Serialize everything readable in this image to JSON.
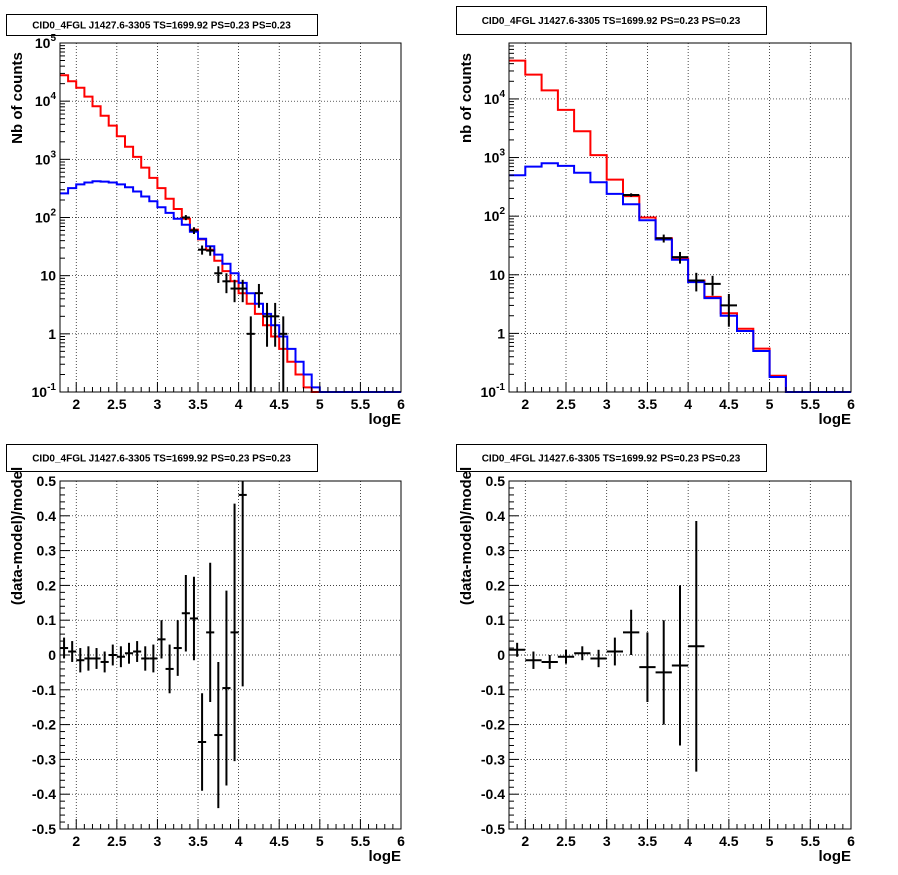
{
  "chart_data": [
    {
      "type": "histogram",
      "title": "CID0_4FGL J1427.6-3305 TS=1699.92 PS=0.23 PS=0.23",
      "xlabel": "logE",
      "ylabel": "Nb of counts",
      "xlim": [
        1.8,
        6.0
      ],
      "ylim": [
        0.1,
        100000
      ],
      "yscale": "log",
      "grid": true,
      "x_ticks": [
        "2",
        "2.5",
        "3",
        "3.5",
        "4",
        "4.5",
        "5",
        "5.5",
        "6"
      ],
      "y_ticks": [
        "10^-1",
        "1",
        "10",
        "10^2",
        "10^3",
        "10^4",
        "10^5"
      ],
      "bin_edges": [
        1.8,
        1.9,
        2.0,
        2.1,
        2.2,
        2.3,
        2.4,
        2.5,
        2.6,
        2.7,
        2.8,
        2.9,
        3.0,
        3.1,
        3.2,
        3.3,
        3.4,
        3.5,
        3.6,
        3.7,
        3.8,
        3.9,
        4.0,
        4.1,
        4.2,
        4.3,
        4.4,
        4.5,
        4.6,
        4.7,
        4.8,
        4.9,
        5.0,
        5.1,
        5.2,
        5.3,
        5.4,
        5.5,
        5.6,
        5.7,
        5.8,
        5.9,
        6.0
      ],
      "series": [
        {
          "color": "#ff0000",
          "values": [
            28000,
            22000,
            17000,
            12000,
            8200,
            5600,
            3800,
            2500,
            1650,
            1100,
            720,
            480,
            320,
            210,
            140,
            95,
            62,
            42,
            28,
            18,
            12,
            8,
            5,
            3.3,
            2.2,
            1.4,
            0.9,
            0.55,
            0.33,
            0.2,
            0.12,
            0.1,
            0.1,
            0.1,
            0.1,
            0.1,
            0.1,
            0.1,
            0.1,
            0.1,
            0.1,
            0.1
          ]
        },
        {
          "color": "#0000ff",
          "values": [
            260,
            320,
            370,
            400,
            420,
            415,
            400,
            370,
            330,
            280,
            230,
            190,
            150,
            120,
            95,
            75,
            57,
            43,
            32,
            23,
            16,
            11,
            7.5,
            5,
            3.3,
            2.2,
            1.4,
            0.9,
            0.55,
            0.33,
            0.2,
            0.12,
            0.1,
            0.1,
            0.1,
            0.1,
            0.1,
            0.1,
            0.1,
            0.1,
            0.1,
            0.1
          ]
        }
      ],
      "points": [
        {
          "x": 3.35,
          "y": 100,
          "ey": 10
        },
        {
          "x": 3.45,
          "y": 60,
          "ey": 8
        },
        {
          "x": 3.55,
          "y": 28,
          "ey": 5
        },
        {
          "x": 3.65,
          "y": 27,
          "ey": 5
        },
        {
          "x": 3.75,
          "y": 11,
          "ey": 3.5
        },
        {
          "x": 3.85,
          "y": 8,
          "ey": 3
        },
        {
          "x": 3.95,
          "y": 6,
          "ey": 2.5
        },
        {
          "x": 4.05,
          "y": 6,
          "ey": 2.5
        },
        {
          "x": 4.15,
          "y": 1,
          "ey": 1
        },
        {
          "x": 4.25,
          "y": 5,
          "ey": 2.2
        },
        {
          "x": 4.35,
          "y": 2,
          "ey": 1.4
        },
        {
          "x": 4.45,
          "y": 2,
          "ey": 1.4
        },
        {
          "x": 4.55,
          "y": 1,
          "ey": 1
        }
      ]
    },
    {
      "type": "histogram",
      "title": "CID0_4FGL J1427.6-3305 TS=1699.92 PS=0.23 PS=0.23",
      "xlabel": "logE",
      "ylabel": "nb of counts",
      "xlim": [
        1.8,
        6.0
      ],
      "ylim": [
        0.1,
        90000
      ],
      "yscale": "log",
      "grid": true,
      "x_ticks": [
        "2",
        "2.5",
        "3",
        "3.5",
        "4",
        "4.5",
        "5",
        "5.5",
        "6"
      ],
      "y_ticks": [
        "10^-1",
        "1",
        "10",
        "10^2",
        "10^3",
        "10^4"
      ],
      "bin_edges": [
        1.8,
        2.0,
        2.2,
        2.4,
        2.6,
        2.8,
        3.0,
        3.2,
        3.4,
        3.6,
        3.8,
        4.0,
        4.2,
        4.4,
        4.6,
        4.8,
        5.0,
        5.2,
        5.4,
        5.6,
        5.8,
        6.0
      ],
      "series": [
        {
          "color": "#ff0000",
          "values": [
            45000,
            26000,
            14000,
            6500,
            2800,
            1100,
            420,
            220,
            95,
            42,
            19,
            8,
            4.2,
            2.2,
            1.2,
            0.55,
            0.19,
            0.1,
            0.1,
            0.1,
            0.1
          ]
        },
        {
          "color": "#0000ff",
          "values": [
            500,
            700,
            800,
            720,
            550,
            380,
            240,
            160,
            85,
            40,
            18,
            7.5,
            4,
            2,
            1.1,
            0.5,
            0.18,
            0.1,
            0.1,
            0.1,
            0.1
          ]
        }
      ],
      "points": [
        {
          "x": 3.3,
          "y": 230,
          "ey": 15
        },
        {
          "x": 3.7,
          "y": 42,
          "ey": 6.5
        },
        {
          "x": 3.9,
          "y": 20,
          "ey": 4.5
        },
        {
          "x": 4.1,
          "y": 8,
          "ey": 2.8
        },
        {
          "x": 4.3,
          "y": 7,
          "ey": 2.6
        },
        {
          "x": 4.5,
          "y": 3,
          "ey": 1.7
        }
      ]
    },
    {
      "type": "errorbar",
      "title": "CID0_4FGL J1427.6-3305 TS=1699.92 PS=0.23 PS=0.23",
      "xlabel": "logE",
      "ylabel": "(data-model)/model",
      "xlim": [
        1.8,
        6.0
      ],
      "ylim": [
        -0.5,
        0.5
      ],
      "grid": true,
      "x_ticks": [
        "2",
        "2.5",
        "3",
        "3.5",
        "4",
        "4.5",
        "5",
        "5.5",
        "6"
      ],
      "y_ticks": [
        "-0.5",
        "-0.4",
        "-0.3",
        "-0.2",
        "-0.1",
        "0",
        "0.1",
        "0.2",
        "0.3",
        "0.4",
        "0.5"
      ],
      "points": [
        {
          "x": 1.85,
          "y": 0.02,
          "ey": 0.03
        },
        {
          "x": 1.95,
          "y": 0.01,
          "ey": 0.03
        },
        {
          "x": 2.05,
          "y": -0.015,
          "ey": 0.035
        },
        {
          "x": 2.15,
          "y": -0.01,
          "ey": 0.035
        },
        {
          "x": 2.25,
          "y": -0.01,
          "ey": 0.03
        },
        {
          "x": 2.35,
          "y": -0.02,
          "ey": 0.03
        },
        {
          "x": 2.45,
          "y": 0.0,
          "ey": 0.03
        },
        {
          "x": 2.55,
          "y": -0.005,
          "ey": 0.03
        },
        {
          "x": 2.65,
          "y": 0.005,
          "ey": 0.03
        },
        {
          "x": 2.75,
          "y": 0.01,
          "ey": 0.03
        },
        {
          "x": 2.85,
          "y": -0.01,
          "ey": 0.035
        },
        {
          "x": 2.95,
          "y": -0.01,
          "ey": 0.04
        },
        {
          "x": 3.05,
          "y": 0.045,
          "ey": 0.055
        },
        {
          "x": 3.15,
          "y": -0.04,
          "ey": 0.07
        },
        {
          "x": 3.25,
          "y": 0.02,
          "ey": 0.08
        },
        {
          "x": 3.35,
          "y": 0.12,
          "ey": 0.11
        },
        {
          "x": 3.45,
          "y": 0.105,
          "ey": 0.12
        },
        {
          "x": 3.55,
          "y": -0.25,
          "ey": 0.14
        },
        {
          "x": 3.65,
          "y": 0.065,
          "ey": 0.2
        },
        {
          "x": 3.75,
          "y": -0.23,
          "ey": 0.21
        },
        {
          "x": 3.85,
          "y": -0.095,
          "ey": 0.28
        },
        {
          "x": 3.95,
          "y": 0.065,
          "ey": 0.37
        },
        {
          "x": 4.05,
          "y": 0.46,
          "ey": 0.55
        }
      ]
    },
    {
      "type": "errorbar",
      "title": "CID0_4FGL J1427.6-3305 TS=1699.92 PS=0.23 PS=0.23",
      "xlabel": "logE",
      "ylabel": "(data-model)/model",
      "xlim": [
        1.8,
        6.0
      ],
      "ylim": [
        -0.5,
        0.5
      ],
      "grid": true,
      "x_ticks": [
        "2",
        "2.5",
        "3",
        "3.5",
        "4",
        "4.5",
        "5",
        "5.5",
        "6"
      ],
      "y_ticks": [
        "-0.5",
        "-0.4",
        "-0.3",
        "-0.2",
        "-0.1",
        "0",
        "0.1",
        "0.2",
        "0.3",
        "0.4",
        "0.5"
      ],
      "points": [
        {
          "x": 1.9,
          "y": 0.015,
          "ey": 0.02
        },
        {
          "x": 2.1,
          "y": -0.015,
          "ey": 0.025
        },
        {
          "x": 2.3,
          "y": -0.02,
          "ey": 0.02
        },
        {
          "x": 2.5,
          "y": -0.005,
          "ey": 0.02
        },
        {
          "x": 2.7,
          "y": 0.005,
          "ey": 0.02
        },
        {
          "x": 2.9,
          "y": -0.01,
          "ey": 0.025
        },
        {
          "x": 3.1,
          "y": 0.01,
          "ey": 0.04
        },
        {
          "x": 3.3,
          "y": 0.065,
          "ey": 0.065
        },
        {
          "x": 3.5,
          "y": -0.035,
          "ey": 0.1
        },
        {
          "x": 3.7,
          "y": -0.05,
          "ey": 0.15
        },
        {
          "x": 3.9,
          "y": -0.03,
          "ey": 0.23
        },
        {
          "x": 4.1,
          "y": 0.025,
          "ey": 0.36
        }
      ]
    }
  ]
}
